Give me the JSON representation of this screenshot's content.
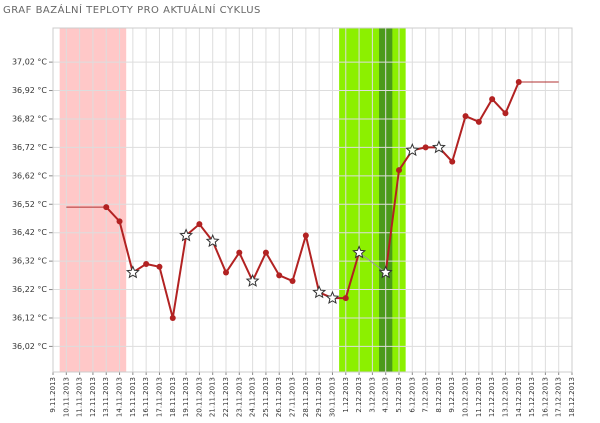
{
  "chart_data": {
    "type": "line",
    "title": "GRAF BAZÁLNÍ TEPLOTY PRO AKTUÁLNÍ CYKLUS",
    "categories": [
      "9.11.2013",
      "10.11.2013",
      "11.11.2013",
      "12.11.2013",
      "13.11.2013",
      "14.11.2013",
      "15.11.2013",
      "16.11.2013",
      "17.11.2013",
      "18.11.2013",
      "19.11.2013",
      "20.11.2013",
      "21.11.2013",
      "22.11.2013",
      "23.11.2013",
      "24.11.2013",
      "25.11.2013",
      "26.11.2013",
      "27.11.2013",
      "28.11.2013",
      "29.11.2013",
      "30.11.2013",
      "1.12.2013",
      "2.12.2013",
      "3.12.2013",
      "4.12.2013",
      "5.12.2013",
      "6.12.2013",
      "7.12.2013",
      "8.12.2013",
      "9.12.2013",
      "10.12.2013",
      "11.12.2013",
      "12.12.2013",
      "13.12.2013",
      "14.12.2013",
      "15.12.2013",
      "16.12.2013",
      "17.12.2013",
      "18.12.2013"
    ],
    "series": [
      {
        "color": "#b22222",
        "values": [
          null,
          null,
          null,
          null,
          36.51,
          36.46,
          36.28,
          36.31,
          36.3,
          36.12,
          36.41,
          36.45,
          36.39,
          36.28,
          36.35,
          36.25,
          36.35,
          36.27,
          36.25,
          36.41,
          36.21,
          36.19,
          36.19,
          36.35,
          null,
          36.28,
          36.64,
          36.71,
          36.72,
          36.72,
          36.67,
          36.83,
          36.81,
          36.89,
          36.84,
          36.95,
          null,
          null,
          null,
          null
        ],
        "markers": [
          null,
          null,
          null,
          null,
          "dot",
          "dot",
          "star",
          "dot",
          "dot",
          "dot",
          "star",
          "dot",
          "star",
          "dot",
          "dot",
          "star",
          "dot",
          "dot",
          "dot",
          "dot",
          "star",
          "star",
          "dot",
          "star",
          null,
          "star",
          "dot",
          "star",
          "dot",
          "star",
          "dot",
          "dot",
          "dot",
          "dot",
          "dot",
          "dot",
          null,
          null,
          null,
          null
        ]
      },
      {
        "color": "#b03030",
        "values": [
          null,
          36.51,
          36.51,
          36.51,
          36.51,
          null,
          null,
          null,
          null,
          null,
          null,
          null,
          null,
          null,
          null,
          null,
          null,
          null,
          null,
          null,
          null,
          null,
          null,
          null,
          null,
          null,
          null,
          null,
          null,
          null,
          null,
          null,
          null,
          null,
          null,
          36.95,
          36.95,
          36.95,
          36.95,
          null
        ]
      }
    ],
    "bands": [
      {
        "from": "10.11.2013",
        "to": "14.11.2013",
        "color": "#ffc8c8"
      },
      {
        "from": "1.12.2013",
        "to": "5.12.2013",
        "color": "#8cf000"
      },
      {
        "from": "4.12.2013",
        "to": "4.12.2013",
        "color": "#4c9a1a"
      }
    ],
    "ylim": [
      35.93,
      37.14
    ],
    "yticks": [
      {
        "value": 36.02,
        "label": "36,02 °C"
      },
      {
        "value": 36.12,
        "label": "36,12 °C"
      },
      {
        "value": 36.22,
        "label": "36,22 °C"
      },
      {
        "value": 36.32,
        "label": "36,32 °C"
      },
      {
        "value": 36.42,
        "label": "36,42 °C"
      },
      {
        "value": 36.52,
        "label": "36,52 °C"
      },
      {
        "value": 36.62,
        "label": "36,62 °C"
      },
      {
        "value": 36.72,
        "label": "36,72 °C"
      },
      {
        "value": 36.82,
        "label": "36,82 °C"
      },
      {
        "value": 36.92,
        "label": "36,92 °C"
      },
      {
        "value": 37.02,
        "label": "37,02 °C"
      }
    ],
    "grid": true
  }
}
